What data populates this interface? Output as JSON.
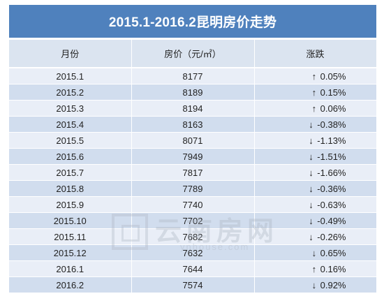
{
  "title": "2015.1-2016.2昆明房价走势",
  "headers": [
    "月份",
    "房价（元/㎡）",
    "涨跌"
  ],
  "rows": [
    {
      "month": "2015.1",
      "price": "8177",
      "dir": "↑",
      "change": "0.05%"
    },
    {
      "month": "2015.2",
      "price": "8189",
      "dir": "↑",
      "change": "0.15%"
    },
    {
      "month": "2015.3",
      "price": "8194",
      "dir": "↑",
      "change": "0.06%"
    },
    {
      "month": "2015.4",
      "price": "8163",
      "dir": "↓",
      "change": "-0.38%"
    },
    {
      "month": "2015.5",
      "price": "8071",
      "dir": "↓",
      "change": "-1.13%"
    },
    {
      "month": "2015.6",
      "price": "7949",
      "dir": "↓",
      "change": "-1.51%"
    },
    {
      "month": "2015.7",
      "price": "7817",
      "dir": "↓",
      "change": "-1.66%"
    },
    {
      "month": "2015.8",
      "price": "7789",
      "dir": "↓",
      "change": "-0.36%"
    },
    {
      "month": "2015.9",
      "price": "7740",
      "dir": "↓",
      "change": "-0.63%"
    },
    {
      "month": "2015.10",
      "price": "7702",
      "dir": "↓",
      "change": "-0.49%"
    },
    {
      "month": "2015.11",
      "price": "7682",
      "dir": "↓",
      "change": "-0.26%"
    },
    {
      "month": "2015.12",
      "price": "7632",
      "dir": "↓",
      "change": "0.65%"
    },
    {
      "month": "2016.1",
      "price": "7644",
      "dir": "↑",
      "change": "0.16%"
    },
    {
      "month": "2016.2",
      "price": "7574",
      "dir": "↓",
      "change": "0.92%"
    }
  ],
  "watermark": {
    "text": "云南房网",
    "url": "ynhouse.com"
  },
  "colors": {
    "title_bg": "#4f81bd",
    "header_bg": "#dbe4f0",
    "row_light": "#e9eef7",
    "row_dark": "#d1ddee"
  }
}
